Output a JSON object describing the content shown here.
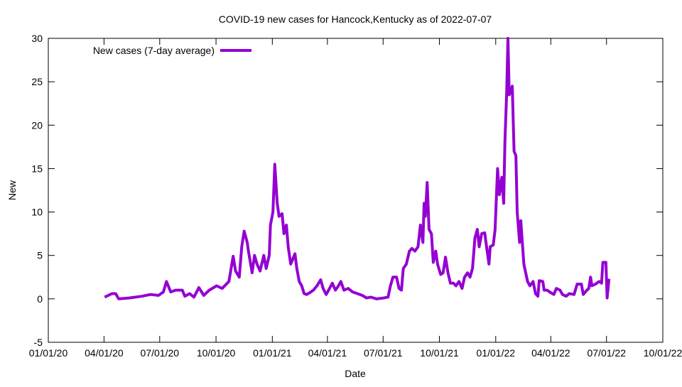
{
  "chart_data": {
    "type": "line",
    "title": "COVID-19 new cases for Hancock,Kentucky as of 2022-07-07",
    "xlabel": "Date",
    "ylabel": "New",
    "x_unit": "days since 2020-01-01",
    "xlim": [
      0,
      1004
    ],
    "ylim": [
      -5,
      30
    ],
    "yticks": [
      -5,
      0,
      5,
      10,
      15,
      20,
      25,
      30
    ],
    "xticks": [
      {
        "day": 0,
        "label": "01/01/20"
      },
      {
        "day": 91,
        "label": "04/01/20"
      },
      {
        "day": 182,
        "label": "07/01/20"
      },
      {
        "day": 274,
        "label": "10/01/20"
      },
      {
        "day": 366,
        "label": "01/01/21"
      },
      {
        "day": 456,
        "label": "04/01/21"
      },
      {
        "day": 547,
        "label": "07/01/21"
      },
      {
        "day": 639,
        "label": "10/01/21"
      },
      {
        "day": 731,
        "label": "01/01/22"
      },
      {
        "day": 821,
        "label": "04/01/22"
      },
      {
        "day": 912,
        "label": "07/01/22"
      },
      {
        "day": 1004,
        "label": "10/01/22"
      }
    ],
    "grid": false,
    "legend_position": "top-left",
    "series": [
      {
        "name": "New cases (7-day average)",
        "color": "#9400d3",
        "points": [
          [
            92,
            0.2
          ],
          [
            104,
            0.6
          ],
          [
            110,
            0.6
          ],
          [
            115,
            0
          ],
          [
            132,
            0.1
          ],
          [
            153,
            0.3
          ],
          [
            167,
            0.5
          ],
          [
            180,
            0.4
          ],
          [
            188,
            0.8
          ],
          [
            193,
            2.0
          ],
          [
            200,
            0.8
          ],
          [
            208,
            1.0
          ],
          [
            219,
            1.0
          ],
          [
            223,
            0.3
          ],
          [
            231,
            0.6
          ],
          [
            238,
            0.2
          ],
          [
            246,
            1.3
          ],
          [
            254,
            0.4
          ],
          [
            263,
            1.0
          ],
          [
            275,
            1.5
          ],
          [
            284,
            1.2
          ],
          [
            295,
            2.0
          ],
          [
            302,
            4.9
          ],
          [
            306,
            3.2
          ],
          [
            312,
            2.5
          ],
          [
            316,
            6.0
          ],
          [
            320,
            7.8
          ],
          [
            325,
            6.5
          ],
          [
            327,
            5.5
          ],
          [
            333,
            3.0
          ],
          [
            337,
            5.0
          ],
          [
            341,
            4.0
          ],
          [
            346,
            3.2
          ],
          [
            352,
            5.0
          ],
          [
            356,
            3.5
          ],
          [
            361,
            5.0
          ],
          [
            363,
            8.5
          ],
          [
            367,
            10
          ],
          [
            370,
            15.5
          ],
          [
            374,
            11
          ],
          [
            377,
            9.5
          ],
          [
            382,
            9.8
          ],
          [
            385,
            7.5
          ],
          [
            389,
            8.5
          ],
          [
            392,
            6
          ],
          [
            396,
            4.0
          ],
          [
            399,
            4.5
          ],
          [
            403,
            5.2
          ],
          [
            406,
            3.5
          ],
          [
            410,
            2.0
          ],
          [
            414,
            1.5
          ],
          [
            418,
            0.6
          ],
          [
            422,
            0.5
          ],
          [
            427,
            0.7
          ],
          [
            433,
            1.0
          ],
          [
            439,
            1.5
          ],
          [
            445,
            2.2
          ],
          [
            449,
            1.2
          ],
          [
            454,
            0.5
          ],
          [
            458,
            1.0
          ],
          [
            464,
            1.8
          ],
          [
            469,
            1.0
          ],
          [
            474,
            1.5
          ],
          [
            478,
            2.0
          ],
          [
            483,
            1.0
          ],
          [
            490,
            1.2
          ],
          [
            497,
            0.8
          ],
          [
            505,
            0.6
          ],
          [
            513,
            0.4
          ],
          [
            520,
            0.1
          ],
          [
            527,
            0.2
          ],
          [
            536,
            0.0
          ],
          [
            548,
            0.1
          ],
          [
            555,
            0.2
          ],
          [
            559,
            1.5
          ],
          [
            563,
            2.5
          ],
          [
            569,
            2.5
          ],
          [
            573,
            1.2
          ],
          [
            577,
            1.0
          ],
          [
            580,
            3.5
          ],
          [
            585,
            4.0
          ],
          [
            590,
            5.5
          ],
          [
            594,
            5.8
          ],
          [
            599,
            5.5
          ],
          [
            604,
            6.0
          ],
          [
            608,
            8.5
          ],
          [
            612,
            6.5
          ],
          [
            614,
            11
          ],
          [
            616,
            9.5
          ],
          [
            619,
            13.4
          ],
          [
            622,
            8
          ],
          [
            626,
            7.5
          ],
          [
            629,
            4.2
          ],
          [
            633,
            5.5
          ],
          [
            636,
            4.0
          ],
          [
            641,
            2.8
          ],
          [
            645,
            3.0
          ],
          [
            649,
            4.8
          ],
          [
            653,
            3.0
          ],
          [
            657,
            1.8
          ],
          [
            662,
            1.8
          ],
          [
            666,
            1.5
          ],
          [
            671,
            2.0
          ],
          [
            676,
            1.2
          ],
          [
            680,
            2.5
          ],
          [
            685,
            3.0
          ],
          [
            689,
            2.5
          ],
          [
            693,
            3.5
          ],
          [
            697,
            7.0
          ],
          [
            701,
            8.0
          ],
          [
            704,
            6.0
          ],
          [
            708,
            7.5
          ],
          [
            713,
            7.6
          ],
          [
            716,
            6.0
          ],
          [
            720,
            4.0
          ],
          [
            722,
            6.0
          ],
          [
            727,
            6.2
          ],
          [
            730,
            8.0
          ],
          [
            734,
            15.0
          ],
          [
            737,
            12.0
          ],
          [
            741,
            14.0
          ],
          [
            744,
            11.0
          ],
          [
            746,
            18.0
          ],
          [
            749,
            24.0
          ],
          [
            751,
            30
          ],
          [
            753,
            23.5
          ],
          [
            756,
            24
          ],
          [
            758,
            24.5
          ],
          [
            761,
            17
          ],
          [
            764,
            16.5
          ],
          [
            766,
            10
          ],
          [
            770,
            6.5
          ],
          [
            772,
            9
          ],
          [
            774,
            7
          ],
          [
            777,
            4.0
          ],
          [
            780,
            3
          ],
          [
            783,
            2.0
          ],
          [
            787,
            1.5
          ],
          [
            792,
            2.0
          ],
          [
            796,
            0.6
          ],
          [
            800,
            0.3
          ],
          [
            802,
            2.1
          ],
          [
            808,
            2.0
          ],
          [
            810,
            1.0
          ],
          [
            815,
            1.0
          ],
          [
            819,
            0.8
          ],
          [
            826,
            0.5
          ],
          [
            830,
            1.2
          ],
          [
            836,
            1.0
          ],
          [
            840,
            0.5
          ],
          [
            846,
            0.3
          ],
          [
            851,
            0.6
          ],
          [
            859,
            0.5
          ],
          [
            864,
            1.7
          ],
          [
            871,
            1.7
          ],
          [
            874,
            0.5
          ],
          [
            880,
            1.0
          ],
          [
            883,
            1.2
          ],
          [
            886,
            2.5
          ],
          [
            888,
            1.5
          ],
          [
            894,
            1.7
          ],
          [
            900,
            2.0
          ],
          [
            904,
            1.8
          ],
          [
            906,
            4.2
          ],
          [
            911,
            4.2
          ],
          [
            913,
            0.1
          ],
          [
            916,
            2.3
          ]
        ]
      }
    ]
  }
}
